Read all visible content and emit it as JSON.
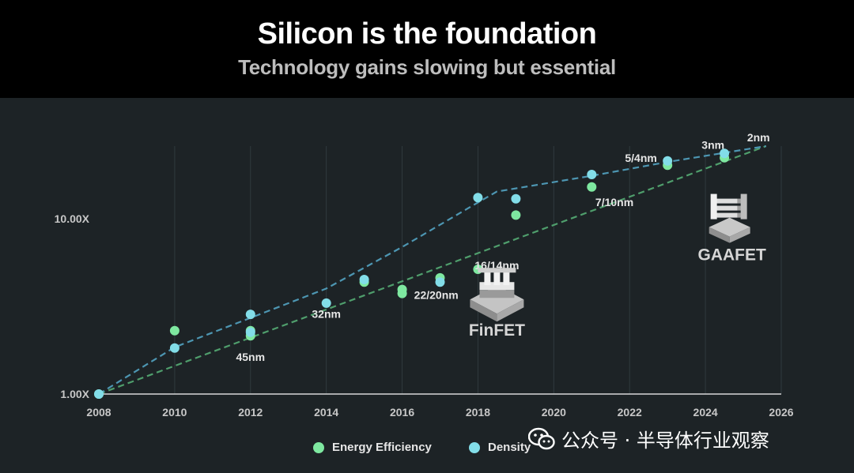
{
  "header": {
    "title": "Silicon is the foundation",
    "subtitle": "Technology gains slowing but essential"
  },
  "chart_data": {
    "type": "scatter",
    "x_ticks": [
      2008,
      2010,
      2012,
      2014,
      2016,
      2018,
      2020,
      2022,
      2024,
      2026
    ],
    "xlim": [
      2008,
      2026
    ],
    "y_scale": "log",
    "y_ticks": [
      {
        "value": 1,
        "label": "1.00X"
      },
      {
        "value": 10,
        "label": "10.00X"
      }
    ],
    "ylim": [
      1,
      26
    ],
    "grid": "vertical",
    "legend_position": "bottom-center",
    "series": [
      {
        "name": "Energy Efficiency",
        "color": "#7ee8a0",
        "points": [
          [
            2008,
            1.0
          ],
          [
            2010,
            2.3
          ],
          [
            2012,
            2.15
          ],
          [
            2012,
            2.3
          ],
          [
            2015,
            4.35
          ],
          [
            2016,
            3.75
          ],
          [
            2016,
            3.95
          ],
          [
            2017,
            4.6
          ],
          [
            2018,
            5.15
          ],
          [
            2019,
            10.5
          ],
          [
            2021,
            15.2
          ],
          [
            2023,
            20.2
          ],
          [
            2024.5,
            22.3
          ]
        ],
        "trend": [
          [
            2008,
            1.0
          ],
          [
            2025.6,
            26.0
          ]
        ]
      },
      {
        "name": "Density",
        "color": "#82dde8",
        "points": [
          [
            2008,
            1.0
          ],
          [
            2010,
            1.83
          ],
          [
            2012,
            2.85
          ],
          [
            2012,
            2.25
          ],
          [
            2014,
            3.3
          ],
          [
            2015,
            4.5
          ],
          [
            2017,
            4.35
          ],
          [
            2018,
            13.2
          ],
          [
            2019,
            13.0
          ],
          [
            2021,
            17.9
          ],
          [
            2023,
            21.4
          ],
          [
            2024.5,
            23.6
          ]
        ],
        "trend": [
          [
            2008,
            1.0
          ],
          [
            2010,
            1.85
          ],
          [
            2014,
            4.0
          ],
          [
            2016,
            6.9
          ],
          [
            2018,
            12.4
          ],
          [
            2018.5,
            14.3
          ],
          [
            2021,
            17.6
          ],
          [
            2023,
            21.1
          ],
          [
            2025.6,
            26.0
          ]
        ]
      }
    ],
    "annotations": [
      {
        "text": "45nm",
        "x": 2012,
        "y": 1.55
      },
      {
        "text": "32nm",
        "x": 2014,
        "y": 2.72
      },
      {
        "text": "22/20nm",
        "x": 2016.9,
        "y": 3.5
      },
      {
        "text": "16/14nm",
        "x": 2018.5,
        "y": 5.15
      },
      {
        "text": "7/10nm",
        "x": 2021.6,
        "y": 11.8
      },
      {
        "text": "5/4nm",
        "x": 2022.3,
        "y": 21.1
      },
      {
        "text": "3nm",
        "x": 2024.2,
        "y": 25.1
      },
      {
        "text": "2nm",
        "x": 2025.4,
        "y": 27.7
      }
    ],
    "technologies": [
      {
        "name": "FinFET",
        "x": 2018.5,
        "y": 2.15,
        "icon": "finfet-transistor-icon"
      },
      {
        "name": "GAAFET",
        "x": 2024.7,
        "y": 5.8,
        "icon": "gaafet-transistor-icon"
      }
    ]
  },
  "watermark": {
    "text": "公众号 · 半导体行业观察",
    "icon": "wechat-icon"
  }
}
